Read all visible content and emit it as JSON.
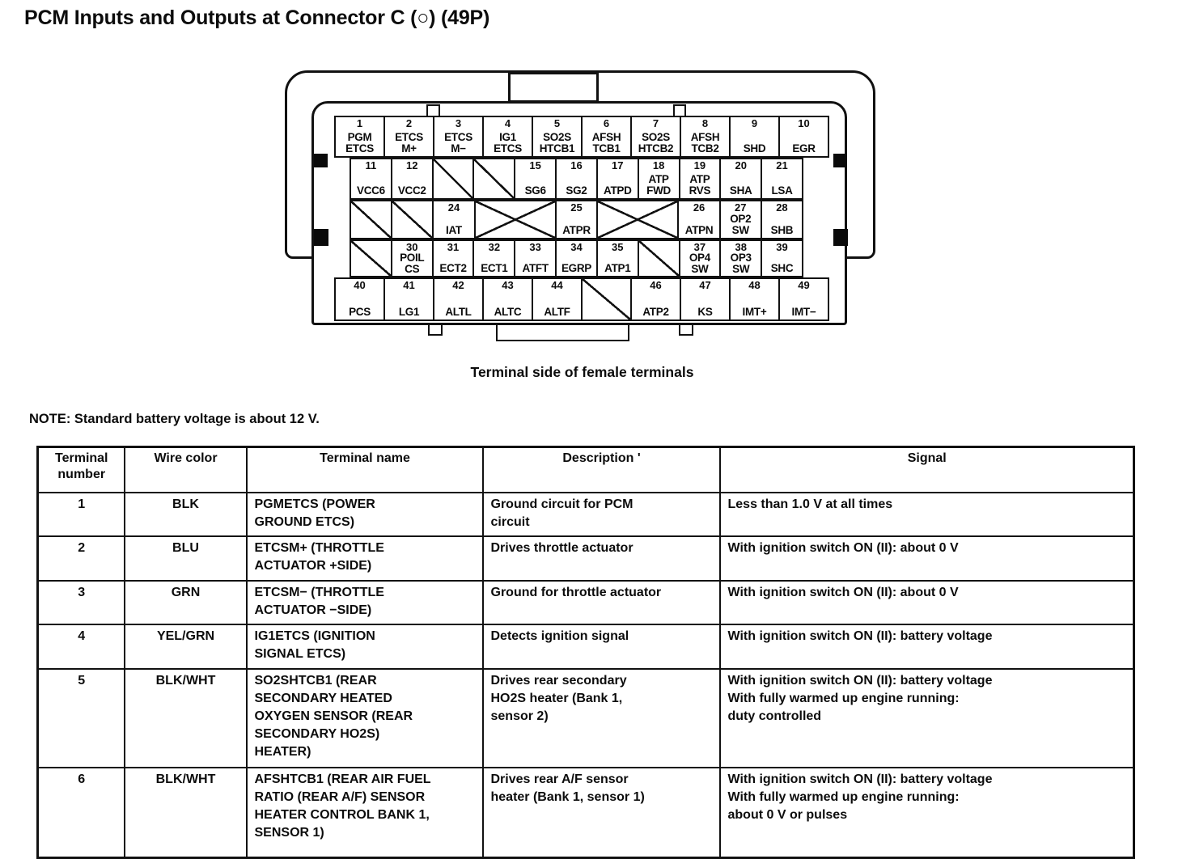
{
  "title": "PCM Inputs and Outputs at Connector C (○) (49P)",
  "caption": "Terminal side of female terminals",
  "note": "NOTE: Standard battery voltage is about 12 V.",
  "connector": {
    "rows": [
      {
        "cells": [
          {
            "n": "1",
            "label": "PGM\nETCS"
          },
          {
            "n": "2",
            "label": "ETCS\nM+"
          },
          {
            "n": "3",
            "label": "ETCS\nM−"
          },
          {
            "n": "4",
            "label": "IG1\nETCS"
          },
          {
            "n": "5",
            "label": "SO2S\nHTCB1"
          },
          {
            "n": "6",
            "label": "AFSH\nTCB1"
          },
          {
            "n": "7",
            "label": "SO2S\nHTCB2"
          },
          {
            "n": "8",
            "label": "AFSH\nTCB2"
          },
          {
            "n": "9",
            "label": "SHD"
          },
          {
            "n": "10",
            "label": "EGR"
          }
        ]
      },
      {
        "cells": [
          {
            "n": "11",
            "label": "VCC6"
          },
          {
            "n": "12",
            "label": "VCC2"
          },
          {
            "type": "slash"
          },
          {
            "type": "slash"
          },
          {
            "n": "15",
            "label": "SG6"
          },
          {
            "n": "16",
            "label": "SG2"
          },
          {
            "n": "17",
            "label": "ATPD"
          },
          {
            "n": "18",
            "label": "ATP\nFWD"
          },
          {
            "n": "19",
            "label": "ATP\nRVS"
          },
          {
            "n": "20",
            "label": "SHA"
          },
          {
            "n": "21",
            "label": "LSA"
          }
        ]
      },
      {
        "cells": [
          {
            "type": "slash"
          },
          {
            "type": "slash"
          },
          {
            "n": "24",
            "label": "IAT"
          },
          {
            "type": "cross",
            "span": 2
          },
          {
            "n": "25",
            "label": "ATPR"
          },
          {
            "type": "cross",
            "span": 2
          },
          {
            "n": "26",
            "label": "ATPN"
          },
          {
            "n": "27",
            "label": "OP2\nSW"
          },
          {
            "n": "28",
            "label": "SHB"
          }
        ]
      },
      {
        "cells": [
          {
            "type": "slash"
          },
          {
            "n": "30",
            "label": "POIL\nCS"
          },
          {
            "n": "31",
            "label": "ECT2"
          },
          {
            "n": "32",
            "label": "ECT1"
          },
          {
            "n": "33",
            "label": "ATFT"
          },
          {
            "n": "34",
            "label": "EGRP"
          },
          {
            "n": "35",
            "label": "ATP1"
          },
          {
            "type": "slash"
          },
          {
            "n": "37",
            "label": "OP4\nSW"
          },
          {
            "n": "38",
            "label": "OP3\nSW"
          },
          {
            "n": "39",
            "label": "SHC"
          }
        ]
      },
      {
        "cells": [
          {
            "n": "40",
            "label": "PCS"
          },
          {
            "n": "41",
            "label": "LG1"
          },
          {
            "n": "42",
            "label": "ALTL"
          },
          {
            "n": "43",
            "label": "ALTC"
          },
          {
            "n": "44",
            "label": "ALTF"
          },
          {
            "type": "slash"
          },
          {
            "n": "46",
            "label": "ATP2"
          },
          {
            "n": "47",
            "label": "KS"
          },
          {
            "n": "48",
            "label": "IMT+"
          },
          {
            "n": "49",
            "label": "IMT−"
          }
        ]
      }
    ]
  },
  "table": {
    "headers": [
      "Terminal\nnumber",
      "Wire color",
      "Terminal name",
      "Description      '",
      "Signal"
    ],
    "rows": [
      {
        "terminal": "1",
        "wire": "BLK",
        "name": "PGMETCS (POWER\nGROUND ETCS)",
        "description": "Ground circuit for PCM\ncircuit",
        "signal": "Less than 1.0 V at all times"
      },
      {
        "terminal": "2",
        "wire": "BLU",
        "name": "ETCSM+ (THROTTLE\nACTUATOR +SIDE)",
        "description": "Drives throttle actuator",
        "signal": "With ignition switch ON (II): about 0 V"
      },
      {
        "terminal": "3",
        "wire": "GRN",
        "name": "ETCSM− (THROTTLE\nACTUATOR −SIDE)",
        "description": "Ground for throttle actuator",
        "signal": "With ignition switch ON (II): about 0 V"
      },
      {
        "terminal": "4",
        "wire": "YEL/GRN",
        "name": "IG1ETCS (IGNITION\nSIGNAL ETCS)",
        "description": "Detects ignition signal",
        "signal": "With ignition switch ON (II): battery voltage"
      },
      {
        "terminal": "5",
        "wire": "BLK/WHT",
        "name": "SO2SHTCB1 (REAR\nSECONDARY HEATED\nOXYGEN SENSOR (REAR\nSECONDARY HO2S)\nHEATER)",
        "description": "Drives rear secondary\nHO2S heater (Bank 1,\nsensor 2)",
        "signal": "With ignition switch ON (II): battery voltage\nWith fully warmed up engine running:\nduty controlled"
      },
      {
        "terminal": "6",
        "wire": "BLK/WHT",
        "name": "AFSHTCB1 (REAR AIR FUEL\nRATIO (REAR A/F) SENSOR\nHEATER CONTROL BANK 1,\nSENSOR 1)",
        "description": "Drives rear A/F sensor\nheater (Bank 1, sensor 1)",
        "signal": "With ignition switch ON (II): battery voltage\nWith fully warmed up engine running:\nabout 0 V or pulses"
      }
    ]
  }
}
